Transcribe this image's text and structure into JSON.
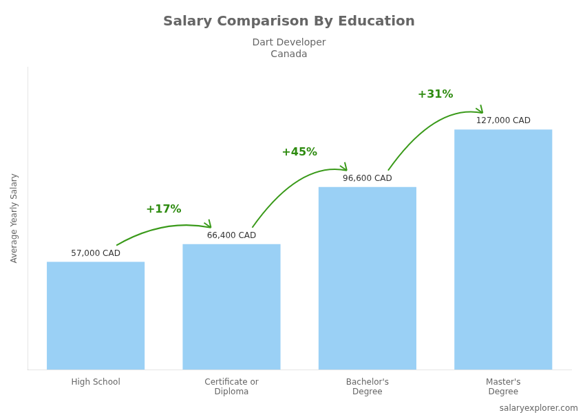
{
  "chart_data": {
    "type": "bar",
    "title": "Salary Comparison By Education",
    "subtitle": "Dart Developer",
    "country": "Canada",
    "source": "salaryexplorer.com",
    "ylabel": "Average Yearly Salary",
    "categories": [
      "High School",
      "Certificate or\nDiploma",
      "Bachelor's\nDegree",
      "Master's\nDegree"
    ],
    "values": [
      57000,
      66400,
      96600,
      127000
    ],
    "value_labels": [
      "57,000 CAD",
      "66,400 CAD",
      "96,600 CAD",
      "127,000 CAD"
    ],
    "data_labels": true,
    "annotations": [
      "+17%",
      "+45%",
      "+31%"
    ],
    "ylim": [
      0,
      160000
    ],
    "tick_labels": "x",
    "grid": false
  }
}
